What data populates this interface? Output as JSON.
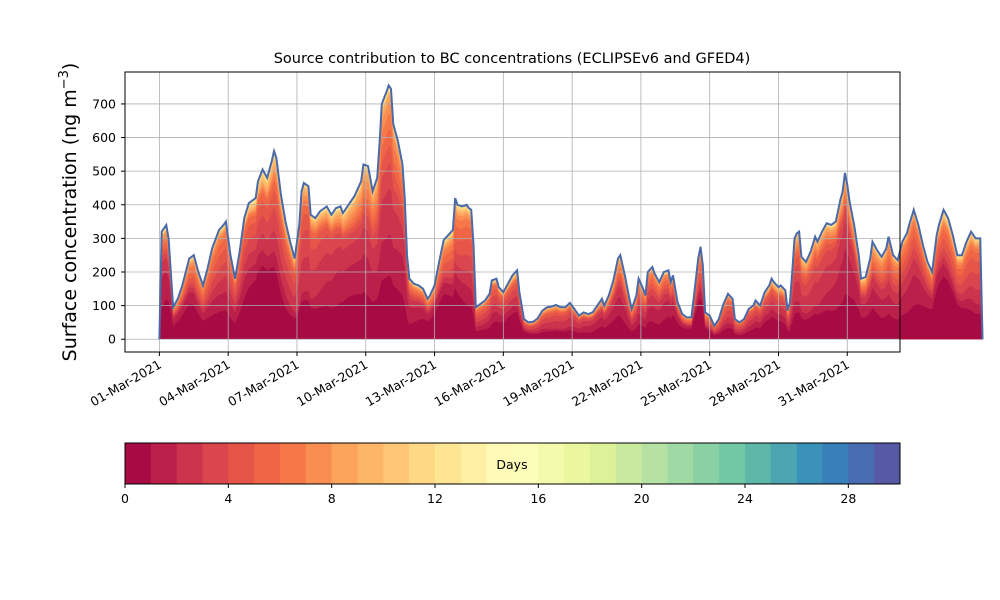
{
  "chart_data": {
    "type": "area",
    "title": "Source contribution to BC concentrations (ECLIPSEv6 and GFED4)",
    "ylabel_main": "Surface concentration (ng m",
    "ylabel_sup": "−3",
    "ylabel_close": ")",
    "xlabel": "",
    "ylim": [
      -38,
      795
    ],
    "yticks": [
      0,
      100,
      200,
      300,
      400,
      500,
      600,
      700
    ],
    "x_unit": "days since 01-Mar-2021",
    "xlim": [
      -1.5,
      32.3
    ],
    "xticks": [
      {
        "day": 0,
        "label": "01-Mar-2021"
      },
      {
        "day": 3,
        "label": "04-Mar-2021"
      },
      {
        "day": 6,
        "label": "07-Mar-2021"
      },
      {
        "day": 9,
        "label": "10-Mar-2021"
      },
      {
        "day": 12,
        "label": "13-Mar-2021"
      },
      {
        "day": 15,
        "label": "16-Mar-2021"
      },
      {
        "day": 18,
        "label": "19-Mar-2021"
      },
      {
        "day": 21,
        "label": "22-Mar-2021"
      },
      {
        "day": 24,
        "label": "25-Mar-2021"
      },
      {
        "day": 27,
        "label": "28-Mar-2021"
      },
      {
        "day": 30,
        "label": "31-Mar-2021"
      }
    ],
    "grid": true,
    "total_series": {
      "name": "Total",
      "color": "#4a69a8",
      "points": [
        [
          0,
          0
        ],
        [
          0.1,
          320
        ],
        [
          0.3,
          340
        ],
        [
          0.4,
          300
        ],
        [
          0.6,
          95
        ],
        [
          0.8,
          120
        ],
        [
          1.0,
          160
        ],
        [
          1.3,
          240
        ],
        [
          1.5,
          250
        ],
        [
          1.7,
          200
        ],
        [
          1.9,
          160
        ],
        [
          2.1,
          210
        ],
        [
          2.3,
          270
        ],
        [
          2.6,
          325
        ],
        [
          2.8,
          340
        ],
        [
          2.9,
          350
        ],
        [
          3.1,
          250
        ],
        [
          3.3,
          180
        ],
        [
          3.5,
          260
        ],
        [
          3.7,
          360
        ],
        [
          3.9,
          405
        ],
        [
          4.0,
          410
        ],
        [
          4.2,
          420
        ],
        [
          4.3,
          470
        ],
        [
          4.5,
          505
        ],
        [
          4.7,
          480
        ],
        [
          4.9,
          530
        ],
        [
          5.0,
          560
        ],
        [
          5.1,
          540
        ],
        [
          5.3,
          430
        ],
        [
          5.5,
          350
        ],
        [
          5.7,
          290
        ],
        [
          5.9,
          240
        ],
        [
          6.1,
          340
        ],
        [
          6.2,
          440
        ],
        [
          6.3,
          465
        ],
        [
          6.5,
          455
        ],
        [
          6.6,
          370
        ],
        [
          6.8,
          360
        ],
        [
          7.0,
          380
        ],
        [
          7.3,
          395
        ],
        [
          7.5,
          370
        ],
        [
          7.7,
          390
        ],
        [
          7.9,
          395
        ],
        [
          8.0,
          375
        ],
        [
          8.2,
          395
        ],
        [
          8.5,
          425
        ],
        [
          8.7,
          455
        ],
        [
          8.8,
          470
        ],
        [
          8.9,
          520
        ],
        [
          9.1,
          515
        ],
        [
          9.3,
          440
        ],
        [
          9.5,
          480
        ],
        [
          9.6,
          580
        ],
        [
          9.7,
          700
        ],
        [
          9.9,
          735
        ],
        [
          10.0,
          755
        ],
        [
          10.1,
          745
        ],
        [
          10.2,
          640
        ],
        [
          10.4,
          590
        ],
        [
          10.6,
          520
        ],
        [
          10.7,
          420
        ],
        [
          10.8,
          250
        ],
        [
          10.9,
          180
        ],
        [
          11.1,
          165
        ],
        [
          11.3,
          160
        ],
        [
          11.5,
          150
        ],
        [
          11.7,
          120
        ],
        [
          11.8,
          130
        ],
        [
          12.0,
          160
        ],
        [
          12.2,
          230
        ],
        [
          12.4,
          295
        ],
        [
          12.6,
          310
        ],
        [
          12.8,
          325
        ],
        [
          12.9,
          420
        ],
        [
          13.0,
          400
        ],
        [
          13.2,
          395
        ],
        [
          13.4,
          400
        ],
        [
          13.5,
          390
        ],
        [
          13.6,
          385
        ],
        [
          13.7,
          280
        ],
        [
          13.8,
          95
        ],
        [
          14.0,
          105
        ],
        [
          14.2,
          115
        ],
        [
          14.4,
          135
        ],
        [
          14.5,
          175
        ],
        [
          14.7,
          180
        ],
        [
          14.8,
          155
        ],
        [
          15.0,
          140
        ],
        [
          15.2,
          165
        ],
        [
          15.4,
          190
        ],
        [
          15.6,
          205
        ],
        [
          15.7,
          140
        ],
        [
          15.9,
          60
        ],
        [
          16.1,
          50
        ],
        [
          16.3,
          52
        ],
        [
          16.5,
          62
        ],
        [
          16.7,
          85
        ],
        [
          16.9,
          95
        ],
        [
          17.1,
          97
        ],
        [
          17.3,
          102
        ],
        [
          17.5,
          95
        ],
        [
          17.7,
          95
        ],
        [
          17.9,
          108
        ],
        [
          18.1,
          90
        ],
        [
          18.3,
          70
        ],
        [
          18.5,
          80
        ],
        [
          18.7,
          75
        ],
        [
          18.9,
          80
        ],
        [
          19.1,
          100
        ],
        [
          19.3,
          120
        ],
        [
          19.4,
          100
        ],
        [
          19.6,
          130
        ],
        [
          19.8,
          175
        ],
        [
          20.0,
          240
        ],
        [
          20.1,
          250
        ],
        [
          20.3,
          190
        ],
        [
          20.5,
          120
        ],
        [
          20.6,
          90
        ],
        [
          20.8,
          130
        ],
        [
          20.9,
          180
        ],
        [
          21.1,
          150
        ],
        [
          21.2,
          130
        ],
        [
          21.3,
          200
        ],
        [
          21.5,
          215
        ],
        [
          21.6,
          195
        ],
        [
          21.8,
          170
        ],
        [
          22.0,
          200
        ],
        [
          22.2,
          205
        ],
        [
          22.3,
          170
        ],
        [
          22.4,
          190
        ],
        [
          22.6,
          110
        ],
        [
          22.8,
          75
        ],
        [
          23.0,
          65
        ],
        [
          23.2,
          65
        ],
        [
          23.3,
          120
        ],
        [
          23.5,
          240
        ],
        [
          23.6,
          275
        ],
        [
          23.7,
          220
        ],
        [
          23.8,
          80
        ],
        [
          24.0,
          70
        ],
        [
          24.2,
          40
        ],
        [
          24.4,
          60
        ],
        [
          24.6,
          105
        ],
        [
          24.8,
          135
        ],
        [
          25.0,
          120
        ],
        [
          25.1,
          60
        ],
        [
          25.3,
          50
        ],
        [
          25.5,
          60
        ],
        [
          25.7,
          90
        ],
        [
          25.9,
          100
        ],
        [
          26.0,
          115
        ],
        [
          26.2,
          100
        ],
        [
          26.4,
          140
        ],
        [
          26.6,
          160
        ],
        [
          26.7,
          180
        ],
        [
          26.8,
          170
        ],
        [
          27.0,
          155
        ],
        [
          27.1,
          160
        ],
        [
          27.3,
          145
        ],
        [
          27.4,
          85
        ],
        [
          27.5,
          110
        ],
        [
          27.6,
          200
        ],
        [
          27.7,
          300
        ],
        [
          27.8,
          315
        ],
        [
          27.9,
          320
        ],
        [
          28.0,
          245
        ],
        [
          28.2,
          230
        ],
        [
          28.4,
          260
        ],
        [
          28.6,
          305
        ],
        [
          28.7,
          290
        ],
        [
          28.9,
          320
        ],
        [
          29.1,
          345
        ],
        [
          29.3,
          340
        ],
        [
          29.5,
          350
        ],
        [
          29.7,
          415
        ],
        [
          29.8,
          440
        ],
        [
          29.9,
          495
        ],
        [
          30.0,
          460
        ],
        [
          30.1,
          410
        ],
        [
          30.3,
          340
        ],
        [
          30.5,
          250
        ],
        [
          30.6,
          180
        ],
        [
          30.8,
          185
        ],
        [
          31.0,
          240
        ],
        [
          31.1,
          290
        ],
        [
          31.3,
          265
        ],
        [
          31.4,
          255
        ],
        [
          31.5,
          245
        ],
        [
          31.7,
          270
        ],
        [
          31.8,
          305
        ],
        [
          32.0,
          250
        ],
        [
          32.2,
          235
        ],
        [
          32.4,
          290
        ],
        [
          32.6,
          315
        ],
        [
          32.7,
          340
        ],
        [
          32.9,
          385
        ],
        [
          33.1,
          340
        ],
        [
          33.3,
          280
        ],
        [
          33.5,
          230
        ],
        [
          33.7,
          200
        ],
        [
          33.9,
          310
        ],
        [
          34.0,
          340
        ],
        [
          34.2,
          385
        ],
        [
          34.4,
          360
        ],
        [
          34.6,
          310
        ],
        [
          34.8,
          250
        ],
        [
          35.0,
          250
        ],
        [
          35.2,
          290
        ],
        [
          35.4,
          320
        ],
        [
          35.6,
          300
        ],
        [
          35.8,
          300
        ],
        [
          35.9,
          0
        ]
      ]
    },
    "colorbar": {
      "label": "Days",
      "range": [
        0,
        30
      ],
      "ticks": [
        0,
        4,
        8,
        12,
        16,
        20,
        24,
        28
      ],
      "colormap": "Spectral"
    }
  }
}
